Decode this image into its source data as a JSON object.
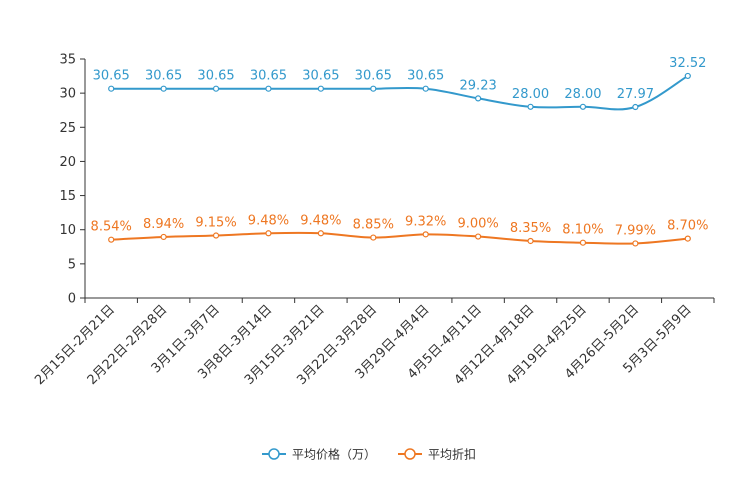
{
  "chart_data": {
    "type": "line",
    "categories": [
      "2月15日-2月21日",
      "2月22日-2月28日",
      "3月1日-3月7日",
      "3月8日-3月14日",
      "3月15日-3月21日",
      "3月22日-3月28日",
      "3月29日-4月4日",
      "4月5日-4月11日",
      "4月12日-4月18日",
      "4月19日-4月25日",
      "4月26日-5月2日",
      "5月3日-5月9日"
    ],
    "series": [
      {
        "name": "平均价格（万）",
        "color": "#3399cc",
        "values": [
          30.65,
          30.65,
          30.65,
          30.65,
          30.65,
          30.65,
          30.65,
          29.23,
          28.0,
          28.0,
          27.97,
          32.52
        ],
        "labels": [
          "30.65",
          "30.65",
          "30.65",
          "30.65",
          "30.65",
          "30.65",
          "30.65",
          "29.23",
          "28.00",
          "28.00",
          "27.97",
          "32.52"
        ]
      },
      {
        "name": "平均折扣",
        "color": "#ee7722",
        "values": [
          8.54,
          8.94,
          9.15,
          9.48,
          9.48,
          8.85,
          9.32,
          9.0,
          8.35,
          8.1,
          7.99,
          8.7
        ],
        "labels": [
          "8.54%",
          "8.94%",
          "9.15%",
          "9.48%",
          "9.48%",
          "8.85%",
          "9.32%",
          "9.00%",
          "8.35%",
          "8.10%",
          "7.99%",
          "8.70%"
        ]
      }
    ],
    "yticks": [
      0,
      5,
      10,
      15,
      20,
      25,
      30,
      35
    ],
    "ylim": [
      0,
      35
    ],
    "legend_position": "bottom-center",
    "grid": false,
    "title": "",
    "xlabel": "",
    "ylabel": ""
  }
}
